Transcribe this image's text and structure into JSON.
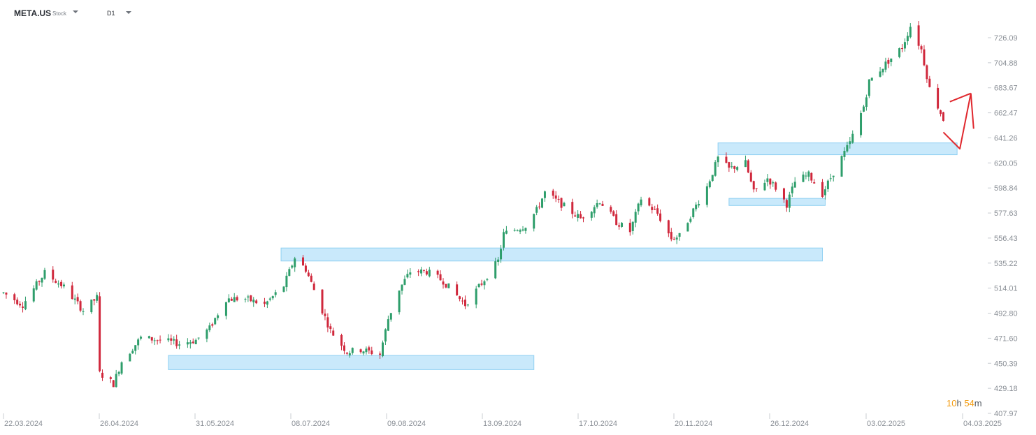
{
  "header": {
    "symbol": "META.US",
    "symbol_type": "Stock",
    "timeframe": "D1"
  },
  "countdown": {
    "hours": "10",
    "hours_unit": "h",
    "minutes": "54",
    "minutes_unit": "m"
  },
  "colors": {
    "up": "#2e9e6b",
    "down": "#d0283c",
    "zone_fill": "#c9e9fb",
    "zone_stroke": "#8fd0f2",
    "annotation": "#e0282e",
    "axis_text": "#8a8f96"
  },
  "chart_data": {
    "type": "candlestick",
    "title": "",
    "y_ticks": [
      "726.09",
      "704.88",
      "683.67",
      "662.47",
      "641.26",
      "620.05",
      "598.84",
      "577.63",
      "556.43",
      "535.22",
      "514.01",
      "492.80",
      "471.60",
      "450.39",
      "429.18",
      "407.97"
    ],
    "ylim": [
      407.97,
      736
    ],
    "x_ticks": [
      "22.03.2024",
      "26.04.2024",
      "31.05.2024",
      "08.07.2024",
      "09.08.2024",
      "13.09.2024",
      "17.10.2024",
      "20.11.2024",
      "26.12.2024",
      "03.02.2025",
      "04.03.2025"
    ],
    "x_range": [
      "2024-03-21",
      "2025-03-05"
    ],
    "trend_key": [
      [
        "2024-03-21",
        510
      ],
      [
        "2024-03-28",
        500
      ],
      [
        "2024-04-05",
        527
      ],
      [
        "2024-04-12",
        515
      ],
      [
        "2024-04-19",
        495
      ],
      [
        "2024-04-24",
        506
      ],
      [
        "2024-04-25",
        442
      ],
      [
        "2024-04-30",
        433
      ],
      [
        "2024-05-03",
        452
      ],
      [
        "2024-05-10",
        472
      ],
      [
        "2024-05-17",
        470
      ],
      [
        "2024-05-24",
        467
      ],
      [
        "2024-05-30",
        470
      ],
      [
        "2024-06-04",
        480
      ],
      [
        "2024-06-10",
        505
      ],
      [
        "2024-06-17",
        505
      ],
      [
        "2024-06-24",
        500
      ],
      [
        "2024-07-01",
        516
      ],
      [
        "2024-07-05",
        540
      ],
      [
        "2024-07-09",
        530
      ],
      [
        "2024-07-15",
        495
      ],
      [
        "2024-07-18",
        478
      ],
      [
        "2024-07-24",
        460
      ],
      [
        "2024-07-29",
        462
      ],
      [
        "2024-08-05",
        458
      ],
      [
        "2024-08-08",
        488
      ],
      [
        "2024-08-12",
        513
      ],
      [
        "2024-08-16",
        528
      ],
      [
        "2024-08-22",
        528
      ],
      [
        "2024-08-28",
        520
      ],
      [
        "2024-09-05",
        500
      ],
      [
        "2024-09-10",
        515
      ],
      [
        "2024-09-17",
        537
      ],
      [
        "2024-09-19",
        560
      ],
      [
        "2024-09-27",
        567
      ],
      [
        "2024-10-01",
        580
      ],
      [
        "2024-10-04",
        595
      ],
      [
        "2024-10-10",
        585
      ],
      [
        "2024-10-17",
        573
      ],
      [
        "2024-10-24",
        588
      ],
      [
        "2024-10-30",
        570
      ],
      [
        "2024-11-04",
        562
      ],
      [
        "2024-11-08",
        590
      ],
      [
        "2024-11-14",
        577
      ],
      [
        "2024-11-19",
        556
      ],
      [
        "2024-11-22",
        558
      ],
      [
        "2024-11-27",
        580
      ],
      [
        "2024-12-02",
        600
      ],
      [
        "2024-12-06",
        624
      ],
      [
        "2024-12-10",
        615
      ],
      [
        "2024-12-16",
        620
      ],
      [
        "2024-12-19",
        595
      ],
      [
        "2024-12-24",
        607
      ],
      [
        "2024-12-27",
        599
      ],
      [
        "2024-12-31",
        585
      ],
      [
        "2025-01-03",
        604
      ],
      [
        "2025-01-08",
        610
      ],
      [
        "2025-01-13",
        594
      ],
      [
        "2025-01-17",
        612
      ],
      [
        "2025-01-23",
        637
      ],
      [
        "2025-01-28",
        668
      ],
      [
        "2025-01-30",
        689
      ],
      [
        "2025-02-05",
        704
      ],
      [
        "2025-02-11",
        718
      ],
      [
        "2025-02-14",
        736
      ],
      [
        "2025-02-18",
        716
      ],
      [
        "2025-02-21",
        683
      ],
      [
        "2025-02-24",
        668
      ],
      [
        "2025-02-26",
        657
      ]
    ],
    "zones": [
      {
        "from": "2024-05-20",
        "to": "2024-09-30",
        "low": 445,
        "high": 457
      },
      {
        "from": "2024-06-30",
        "to": "2025-01-13",
        "low": 537,
        "high": 548
      },
      {
        "from": "2024-12-10",
        "to": "2025-01-14",
        "low": 584,
        "high": 590
      },
      {
        "from": "2024-12-06",
        "to": "2025-03-03",
        "low": 627,
        "high": 637
      }
    ],
    "annotation_arrow": [
      [
        "2025-02-26",
        646
      ],
      [
        "2025-03-04",
        632
      ],
      [
        "2025-03-08",
        679
      ],
      [
        "2025-03-08",
        649
      ]
    ]
  }
}
